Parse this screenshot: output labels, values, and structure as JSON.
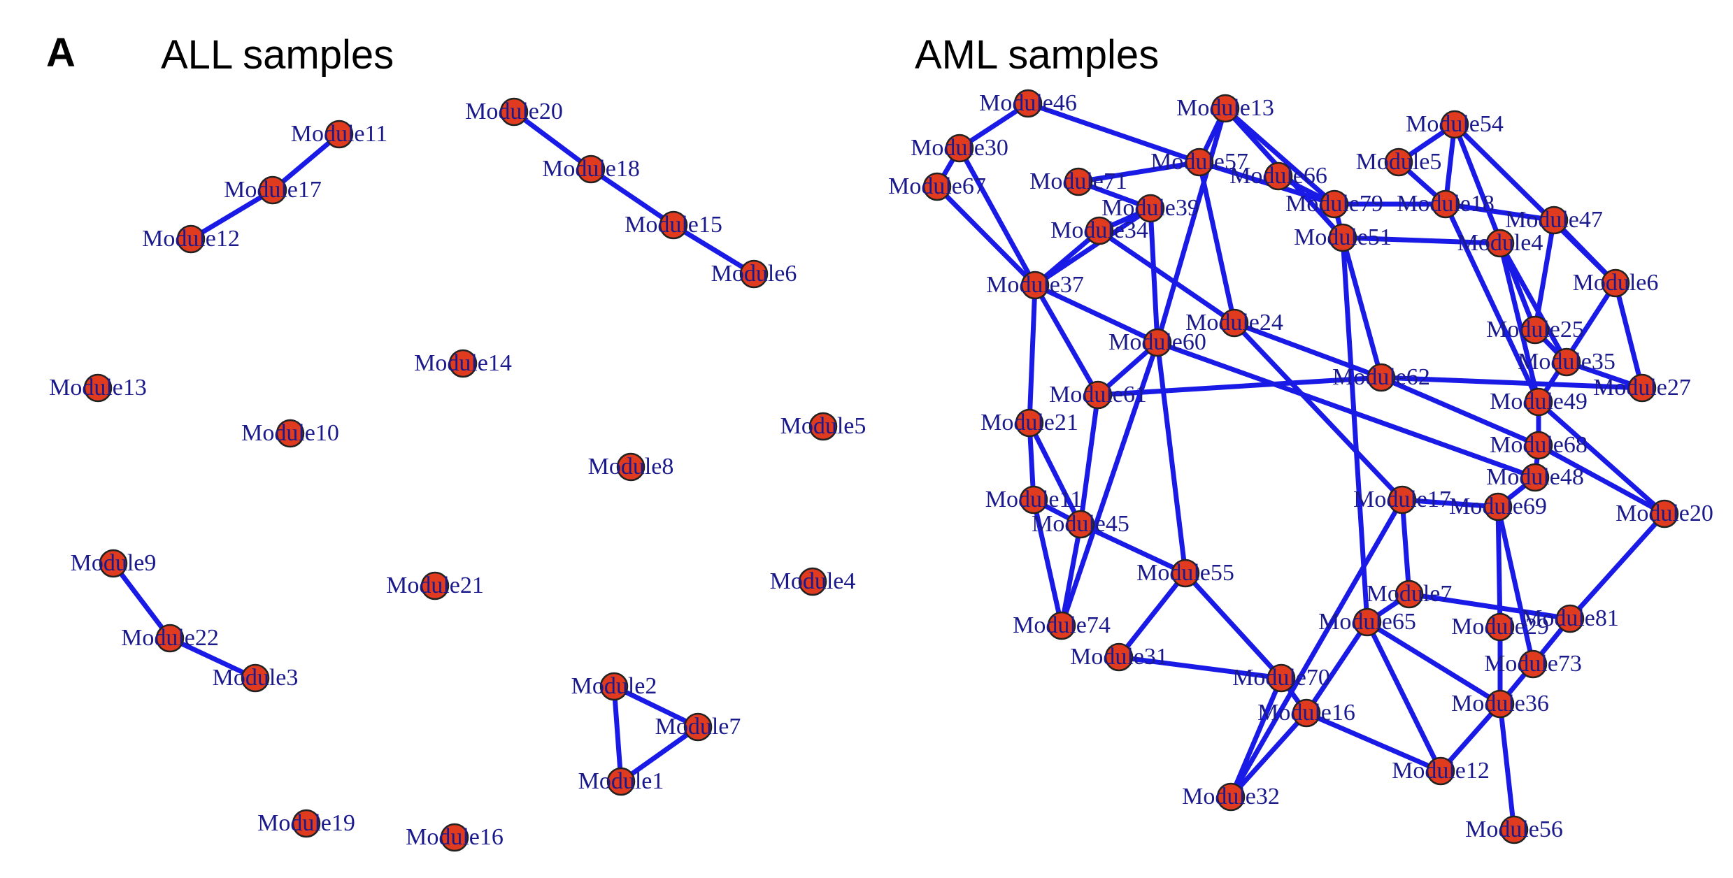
{
  "panel_letter": "A",
  "colors": {
    "edge": "#1a1ae6",
    "node": "#e03a1f",
    "label": "#1a1a8c"
  },
  "left_network": {
    "title": "ALL samples",
    "nodes": [
      "Module11",
      "Module17",
      "Module12",
      "Module20",
      "Module18",
      "Module15",
      "Module6",
      "Module14",
      "Module13",
      "Module10",
      "Module5",
      "Module8",
      "Module9",
      "Module21",
      "Module4",
      "Module22",
      "Module3",
      "Module2",
      "Module7",
      "Module1",
      "Module19",
      "Module16"
    ],
    "edges": [
      [
        "Module11",
        "Module17"
      ],
      [
        "Module17",
        "Module12"
      ],
      [
        "Module20",
        "Module18"
      ],
      [
        "Module18",
        "Module15"
      ],
      [
        "Module15",
        "Module6"
      ],
      [
        "Module9",
        "Module22"
      ],
      [
        "Module22",
        "Module3"
      ],
      [
        "Module2",
        "Module7"
      ],
      [
        "Module7",
        "Module1"
      ],
      [
        "Module1",
        "Module2"
      ]
    ]
  },
  "right_network": {
    "title": "AML samples",
    "nodes": [
      "Module46",
      "Module30",
      "Module67",
      "Module13",
      "Module54",
      "Module57",
      "Module71",
      "Module66",
      "Module5",
      "Module39",
      "Module79",
      "Module18",
      "Module47",
      "Module34",
      "Module51",
      "Module4",
      "Module37",
      "Module6",
      "Module24",
      "Module60",
      "Module25",
      "Module35",
      "Module27",
      "Module62",
      "Module61",
      "Module21",
      "Module49",
      "Module68",
      "Module48",
      "Module11",
      "Module20",
      "Module45",
      "Module17",
      "Module69",
      "Module55",
      "Module7",
      "Module81",
      "Module74",
      "Module65",
      "Module29",
      "Module73",
      "Module31",
      "Module70",
      "Module36",
      "Module16",
      "Module12",
      "Module32",
      "Module56"
    ],
    "edges": [
      [
        "Module46",
        "Module30"
      ],
      [
        "Module30",
        "Module67"
      ],
      [
        "Module46",
        "Module57"
      ],
      [
        "Module67",
        "Module37"
      ],
      [
        "Module30",
        "Module37"
      ],
      [
        "Module13",
        "Module57"
      ],
      [
        "Module13",
        "Module51"
      ],
      [
        "Module13",
        "Module60"
      ],
      [
        "Module13",
        "Module79"
      ],
      [
        "Module54",
        "Module5"
      ],
      [
        "Module54",
        "Module18"
      ],
      [
        "Module54",
        "Module6"
      ],
      [
        "Module54",
        "Module25"
      ],
      [
        "Module57",
        "Module71"
      ],
      [
        "Module57",
        "Module79"
      ],
      [
        "Module57",
        "Module24"
      ],
      [
        "Module71",
        "Module39"
      ],
      [
        "Module66",
        "Module79"
      ],
      [
        "Module5",
        "Module18"
      ],
      [
        "Module39",
        "Module34"
      ],
      [
        "Module39",
        "Module37"
      ],
      [
        "Module39",
        "Module60"
      ],
      [
        "Module79",
        "Module51"
      ],
      [
        "Module79",
        "Module18"
      ],
      [
        "Module47",
        "Module25"
      ],
      [
        "Module47",
        "Module6"
      ],
      [
        "Module47",
        "Module18"
      ],
      [
        "Module34",
        "Module37"
      ],
      [
        "Module34",
        "Module24"
      ],
      [
        "Module51",
        "Module62"
      ],
      [
        "Module51",
        "Module4"
      ],
      [
        "Module4",
        "Module49"
      ],
      [
        "Module4",
        "Module35"
      ],
      [
        "Module37",
        "Module21"
      ],
      [
        "Module37",
        "Module61"
      ],
      [
        "Module37",
        "Module60"
      ],
      [
        "Module6",
        "Module27"
      ],
      [
        "Module6",
        "Module49"
      ],
      [
        "Module24",
        "Module62"
      ],
      [
        "Module60",
        "Module61"
      ],
      [
        "Module60",
        "Module55"
      ],
      [
        "Module25",
        "Module35"
      ],
      [
        "Module35",
        "Module27"
      ],
      [
        "Module27",
        "Module62"
      ],
      [
        "Module62",
        "Module61"
      ],
      [
        "Module61",
        "Module45"
      ],
      [
        "Module21",
        "Module11"
      ],
      [
        "Module21",
        "Module45"
      ],
      [
        "Module49",
        "Module68"
      ],
      [
        "Module68",
        "Module48"
      ],
      [
        "Module68",
        "Module20"
      ],
      [
        "Module48",
        "Module69"
      ],
      [
        "Module11",
        "Module74"
      ],
      [
        "Module11",
        "Module45"
      ],
      [
        "Module45",
        "Module55"
      ],
      [
        "Module20",
        "Module81"
      ],
      [
        "Module20",
        "Module49"
      ],
      [
        "Module17",
        "Module69"
      ],
      [
        "Module17",
        "Module7"
      ],
      [
        "Module69",
        "Module73"
      ],
      [
        "Module69",
        "Module29"
      ],
      [
        "Module55",
        "Module31"
      ],
      [
        "Module55",
        "Module70"
      ],
      [
        "Module7",
        "Module65"
      ],
      [
        "Module7",
        "Module81"
      ],
      [
        "Module81",
        "Module73"
      ],
      [
        "Module74",
        "Module60"
      ],
      [
        "Module74",
        "Module45"
      ],
      [
        "Module65",
        "Module16"
      ],
      [
        "Module65",
        "Module36"
      ],
      [
        "Module29",
        "Module36"
      ],
      [
        "Module73",
        "Module36"
      ],
      [
        "Module31",
        "Module70"
      ],
      [
        "Module70",
        "Module16"
      ],
      [
        "Module70",
        "Module32"
      ],
      [
        "Module36",
        "Module56"
      ],
      [
        "Module36",
        "Module12"
      ],
      [
        "Module16",
        "Module12"
      ],
      [
        "Module16",
        "Module32"
      ],
      [
        "Module12",
        "Module65"
      ],
      [
        "Module32",
        "Module17"
      ],
      [
        "Module18",
        "Module49"
      ],
      [
        "Module62",
        "Module68"
      ],
      [
        "Module24",
        "Module17"
      ],
      [
        "Module51",
        "Module65"
      ],
      [
        "Module60",
        "Module48"
      ]
    ]
  }
}
